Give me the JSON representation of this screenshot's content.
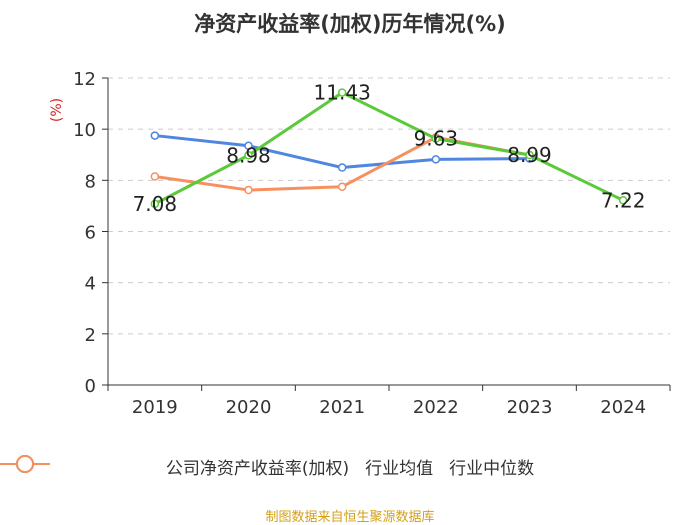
{
  "chart_data": {
    "type": "line",
    "title": "净资产收益率(加权)历年情况(%)",
    "ylabel": "(%)",
    "xlabel": "",
    "categories": [
      "2019",
      "2020",
      "2021",
      "2022",
      "2023",
      "2024"
    ],
    "ylim": [
      0,
      12
    ],
    "yticks": [
      0,
      2,
      4,
      6,
      8,
      10,
      12
    ],
    "grid": true,
    "legend_position": "bottom",
    "series": [
      {
        "name": "公司净资产收益率(加权)",
        "color": "#5cc93a",
        "values": [
          7.08,
          8.98,
          11.43,
          9.63,
          8.99,
          7.22
        ],
        "labels": [
          "7.08",
          "8.98",
          "11.43",
          "9.63",
          "8.99",
          "7.22"
        ]
      },
      {
        "name": "行业均值",
        "color": "#4f86df",
        "values": [
          9.75,
          9.35,
          8.5,
          8.82,
          8.85,
          null
        ]
      },
      {
        "name": "行业中位数",
        "color": "#f7905f",
        "values": [
          8.15,
          7.62,
          7.75,
          9.68,
          8.99,
          null
        ]
      }
    ]
  },
  "source": "制图数据来自恒生聚源数据库"
}
